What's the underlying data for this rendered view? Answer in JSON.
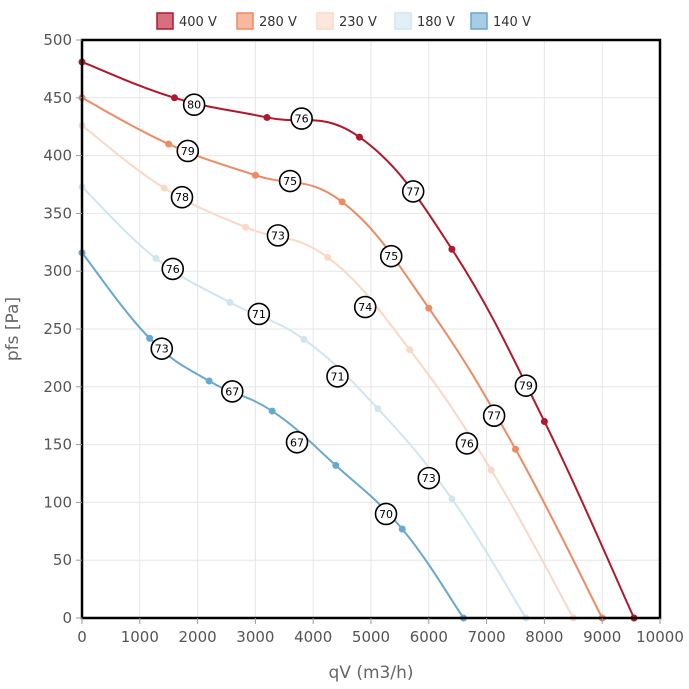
{
  "chart_data": {
    "type": "line",
    "xlabel": "qV (m3/h)",
    "ylabel": "pfs [Pa]",
    "xlim": [
      0,
      10000
    ],
    "ylim": [
      0,
      500
    ],
    "xticks": [
      0,
      1000,
      2000,
      3000,
      4000,
      5000,
      6000,
      7000,
      8000,
      9000,
      10000
    ],
    "yticks": [
      0,
      50,
      100,
      150,
      200,
      250,
      300,
      350,
      400,
      450,
      500
    ],
    "grid": true,
    "legend_position": "top-center",
    "series": [
      {
        "name": "400 V",
        "color": "#b2182b",
        "fill": "#d6707c",
        "points": [
          [
            0,
            481
          ],
          [
            1600,
            450
          ],
          [
            3200,
            433
          ],
          [
            4800,
            416
          ],
          [
            6400,
            319
          ],
          [
            8000,
            170
          ],
          [
            9550,
            0
          ]
        ],
        "markers": [
          {
            "x": 1940,
            "y": 444,
            "label": "80"
          },
          {
            "x": 3800,
            "y": 432,
            "label": "76"
          },
          {
            "x": 5730,
            "y": 369,
            "label": "77"
          },
          {
            "x": 7680,
            "y": 201,
            "label": "79"
          }
        ]
      },
      {
        "name": "280 V",
        "color": "#ef8a62",
        "fill": "#f6b99f",
        "points": [
          [
            0,
            450
          ],
          [
            1500,
            410
          ],
          [
            3000,
            383
          ],
          [
            4500,
            360
          ],
          [
            6000,
            268
          ],
          [
            7500,
            146
          ],
          [
            9000,
            0
          ]
        ],
        "markers": [
          {
            "x": 1830,
            "y": 404,
            "label": "79"
          },
          {
            "x": 3600,
            "y": 378,
            "label": "75"
          },
          {
            "x": 5350,
            "y": 313,
            "label": "75"
          },
          {
            "x": 7130,
            "y": 175,
            "label": "77"
          }
        ]
      },
      {
        "name": "230 V",
        "color": "#fbd8c6",
        "fill": "#fde7dc",
        "points": [
          [
            0,
            426
          ],
          [
            1420,
            372
          ],
          [
            2830,
            338
          ],
          [
            4250,
            312
          ],
          [
            5670,
            232
          ],
          [
            7080,
            128
          ],
          [
            8500,
            0
          ]
        ],
        "markers": [
          {
            "x": 1730,
            "y": 364,
            "label": "78"
          },
          {
            "x": 3390,
            "y": 331,
            "label": "73"
          },
          {
            "x": 4900,
            "y": 269,
            "label": "74"
          },
          {
            "x": 6660,
            "y": 151,
            "label": "76"
          }
        ]
      },
      {
        "name": "180 V",
        "color": "#d1e5f0",
        "fill": "#e3eff6",
        "points": [
          [
            0,
            373
          ],
          [
            1280,
            311
          ],
          [
            2560,
            273
          ],
          [
            3840,
            241
          ],
          [
            5120,
            181
          ],
          [
            6400,
            103
          ],
          [
            7680,
            0
          ]
        ],
        "markers": [
          {
            "x": 1570,
            "y": 302,
            "label": "76"
          },
          {
            "x": 3060,
            "y": 263,
            "label": "71"
          },
          {
            "x": 4420,
            "y": 209,
            "label": "71"
          },
          {
            "x": 6000,
            "y": 121,
            "label": "73"
          }
        ]
      },
      {
        "name": "140 V",
        "color": "#67a9cf",
        "fill": "#a6cde3",
        "points": [
          [
            0,
            316
          ],
          [
            1170,
            242
          ],
          [
            2200,
            205
          ],
          [
            3290,
            179
          ],
          [
            4390,
            132
          ],
          [
            5540,
            77
          ],
          [
            6600,
            0
          ]
        ],
        "markers": [
          {
            "x": 1380,
            "y": 233,
            "label": "73"
          },
          {
            "x": 2600,
            "y": 196,
            "label": "67"
          },
          {
            "x": 3720,
            "y": 152,
            "label": "67"
          },
          {
            "x": 5260,
            "y": 90,
            "label": "70"
          }
        ]
      }
    ]
  }
}
